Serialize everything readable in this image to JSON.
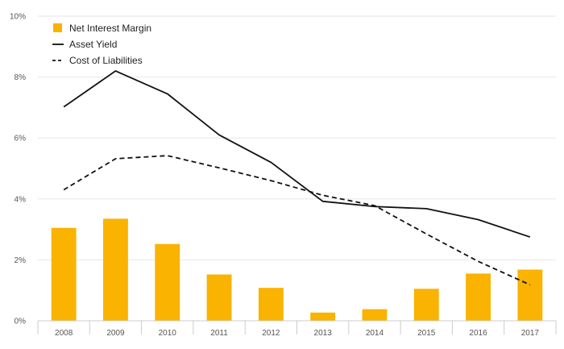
{
  "chart_data": {
    "type": "bar",
    "categories": [
      "2008",
      "2009",
      "2010",
      "2011",
      "2012",
      "2013",
      "2014",
      "2015",
      "2016",
      "2017"
    ],
    "series": [
      {
        "name": "Net Interest Margin",
        "type": "bar",
        "color": "#F9B300",
        "values": [
          3.05,
          3.35,
          2.52,
          1.52,
          1.08,
          0.27,
          0.38,
          1.05,
          1.55,
          1.68
        ]
      },
      {
        "name": "Asset Yield",
        "type": "line",
        "style": "solid",
        "color": "#111111",
        "values": [
          7.02,
          8.2,
          7.45,
          6.1,
          5.2,
          3.92,
          3.75,
          3.68,
          3.32,
          2.75
        ]
      },
      {
        "name": "Cost of Liabilities",
        "type": "line",
        "style": "dashed",
        "color": "#111111",
        "values": [
          4.3,
          5.32,
          5.42,
          5.02,
          4.6,
          4.12,
          3.78,
          2.85,
          1.95,
          1.18
        ]
      }
    ],
    "y_ticks": [
      "0%",
      "2%",
      "4%",
      "6%",
      "8%",
      "10%"
    ],
    "ylim": [
      0,
      10
    ],
    "grid": true,
    "legend_position": "top-left"
  }
}
